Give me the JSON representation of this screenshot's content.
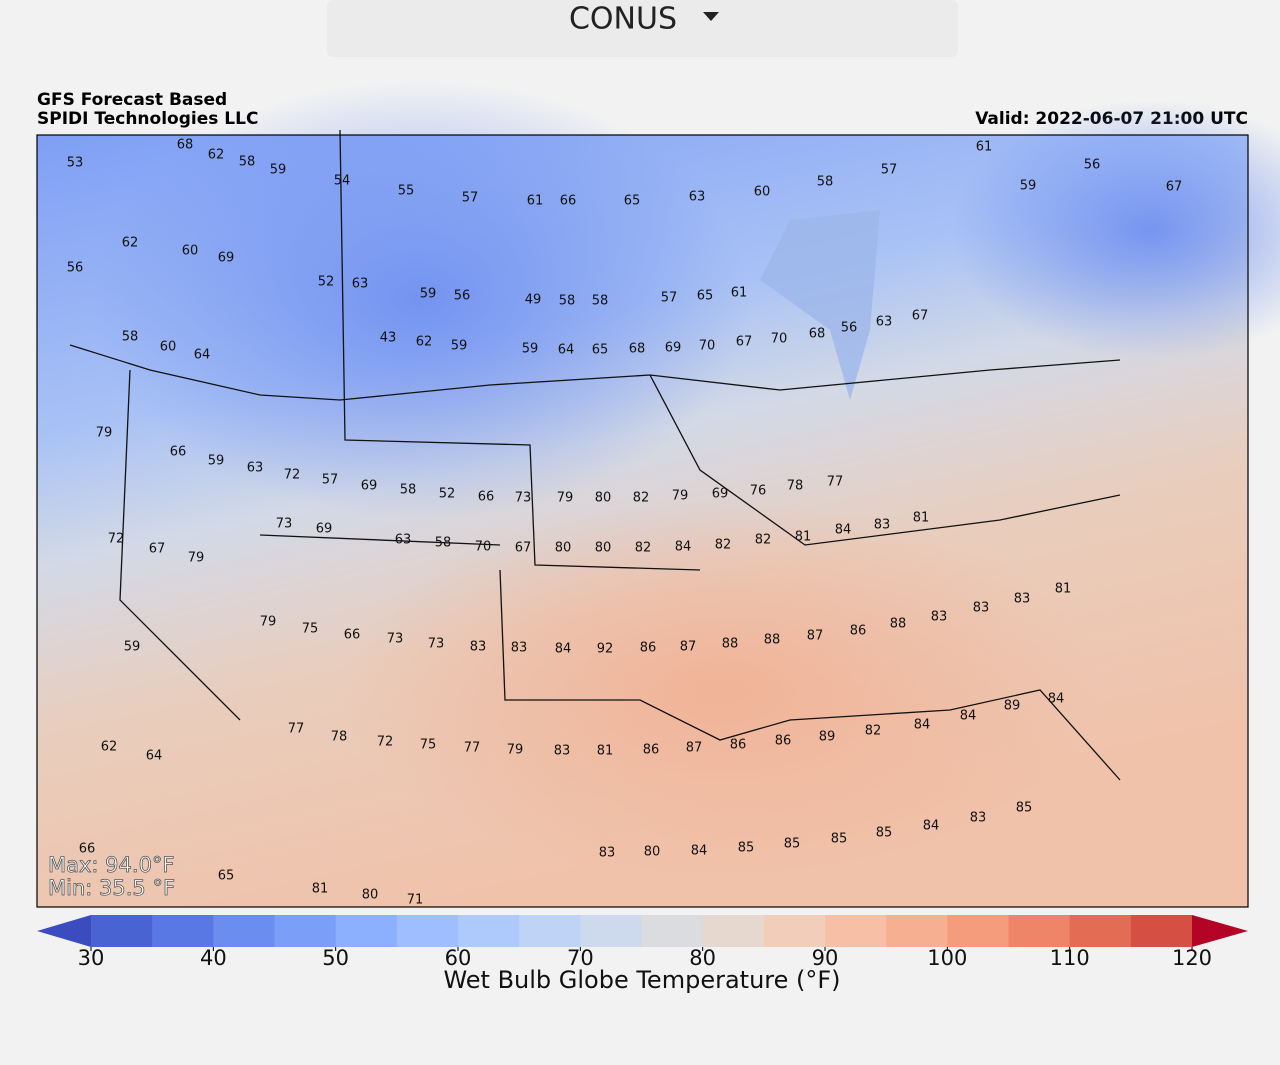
{
  "header": {
    "dropdown": "CONUS"
  },
  "map": {
    "title_lines": [
      "GFS Forecast Based",
      "SPIDI Technologies LLC"
    ],
    "valid": "Valid: 2022-06-07 21:00 UTC",
    "max_label": "Max: 94.0°F",
    "min_label": "Min: 35.5 °F",
    "values": [
      53,
      68,
      62,
      58,
      59,
      54,
      55,
      57,
      61,
      66,
      65,
      63,
      60,
      58,
      57,
      61,
      59,
      56,
      67,
      56,
      62,
      60,
      69,
      52,
      63,
      59,
      56,
      49,
      58,
      58,
      57,
      65,
      61,
      58,
      60,
      64,
      43,
      62,
      59,
      59,
      64,
      65,
      68,
      69,
      70,
      67,
      70,
      68,
      56,
      63,
      67,
      79,
      66,
      59,
      63,
      72,
      57,
      69,
      58,
      52,
      66,
      73,
      79,
      80,
      82,
      79,
      69,
      76,
      78,
      77,
      72,
      67,
      79,
      73,
      69,
      63,
      58,
      70,
      67,
      80,
      80,
      82,
      84,
      82,
      82,
      81,
      84,
      83,
      81,
      59,
      79,
      75,
      66,
      73,
      73,
      83,
      83,
      84,
      92,
      86,
      87,
      88,
      88,
      87,
      86,
      88,
      83,
      83,
      83,
      81,
      62,
      64,
      77,
      78,
      72,
      75,
      77,
      79,
      83,
      81,
      86,
      87,
      86,
      86,
      89,
      82,
      84,
      84,
      89,
      84,
      66,
      65,
      81,
      80,
      71,
      83,
      80,
      84,
      85,
      85,
      85,
      85,
      84,
      83,
      85
    ]
  },
  "colorbar": {
    "label": "Wet Bulb Globe Temperature (°F)",
    "lim": [
      30,
      120
    ],
    "ticks": [
      30,
      40,
      50,
      60,
      70,
      80,
      90,
      100,
      110,
      120
    ],
    "colors": [
      "#3b4cc0",
      "#4a63d3",
      "#5a78e4",
      "#6b8df0",
      "#7b9ff9",
      "#8db0fe",
      "#9ebeff",
      "#aec9fc",
      "#bfd3f6",
      "#cdd9ec",
      "#dadce0",
      "#e6d7cf",
      "#f1cdba",
      "#f6bfa6",
      "#f7af91",
      "#f59c7d",
      "#ee8468",
      "#e36c55",
      "#d55042",
      "#b40426"
    ]
  }
}
